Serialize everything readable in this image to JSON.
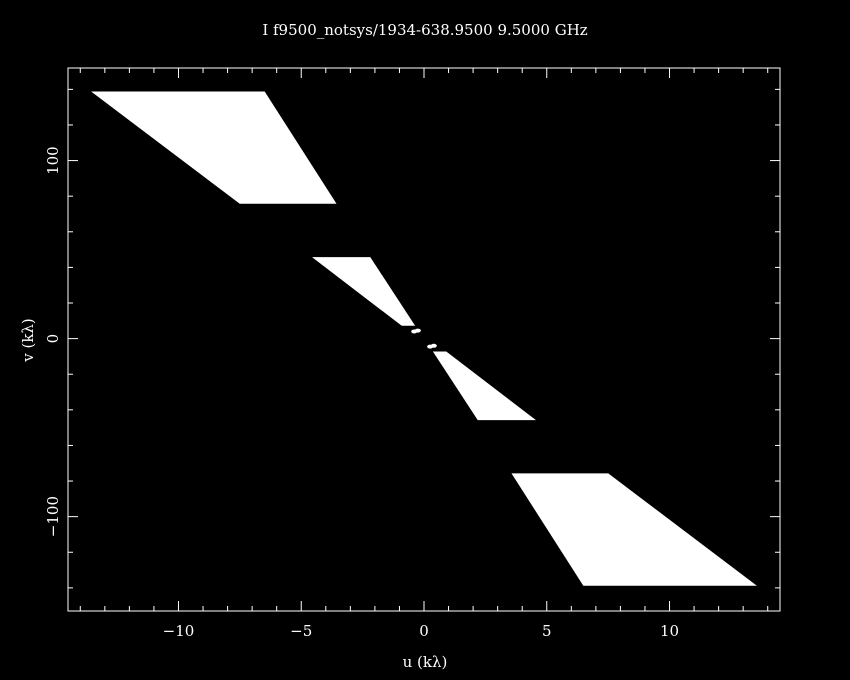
{
  "chart_data": {
    "type": "scatter",
    "title": "I f9500_notsys/1934-638.9500  9.5000 GHz",
    "xlabel": "u (kλ)",
    "ylabel": "v (kλ)",
    "xlim": [
      -14.5,
      14.5
    ],
    "ylim": [
      -153,
      152
    ],
    "xticks_major": [
      -10,
      -5,
      0,
      5,
      10
    ],
    "xticks_minor_step": 1,
    "yticks_major": [
      -100,
      0,
      100
    ],
    "yticks_minor_step": 20,
    "xtick_labels": [
      "−10",
      "−5",
      "0",
      "5",
      "10"
    ],
    "ytick_labels": [
      "−100",
      "0",
      "100"
    ],
    "grid": false,
    "colors": {
      "background": "#000000",
      "foreground": "#ffffff",
      "points": "#ffffff"
    },
    "series": [
      {
        "polygons": [
          [
            [
              -13.5,
              138.5
            ],
            [
              -6.5,
              138.5
            ],
            [
              -3.6,
              76
            ],
            [
              -7.5,
              76
            ]
          ],
          [
            [
              -4.5,
              45.5
            ],
            [
              -2.2,
              45.5
            ],
            [
              -0.4,
              7.5
            ],
            [
              -0.9,
              7.5
            ]
          ],
          [
            [
              4.5,
              -45.5
            ],
            [
              2.2,
              -45.5
            ],
            [
              0.4,
              -7.5
            ],
            [
              0.9,
              -7.5
            ]
          ],
          [
            [
              13.5,
              -138.5
            ],
            [
              6.5,
              -138.5
            ],
            [
              3.6,
              -76
            ],
            [
              7.5,
              -76
            ]
          ]
        ],
        "points": [
          [
            -0.4,
            4
          ],
          [
            0.4,
            -4
          ],
          [
            0.25,
            -4.5
          ],
          [
            -0.25,
            4.5
          ]
        ]
      }
    ]
  }
}
